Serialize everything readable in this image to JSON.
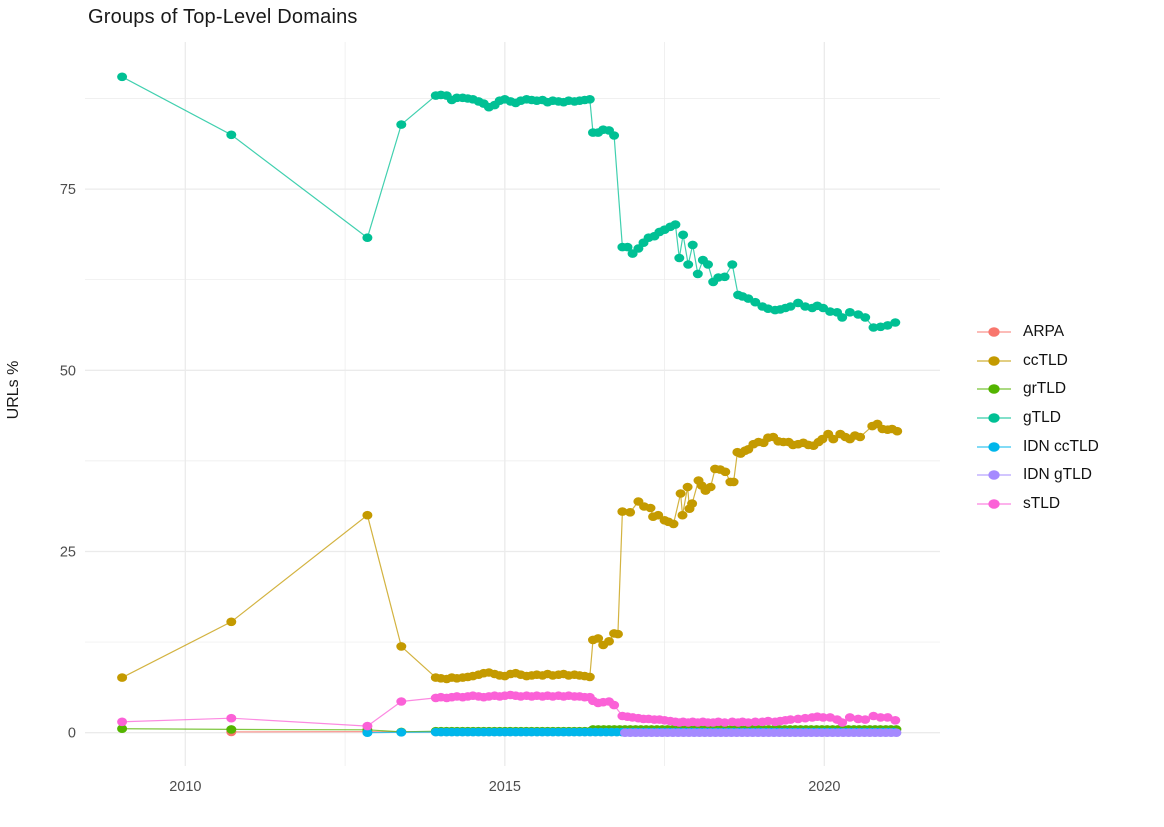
{
  "chart_data": {
    "type": "line",
    "title": "Groups of Top-Level Domains",
    "xlabel": "",
    "ylabel": "URLs %",
    "x_ticks": [
      2010,
      2015,
      2020
    ],
    "x_minor_ticks": [
      2012.5,
      2017.5
    ],
    "y_ticks": [
      0,
      25,
      50,
      75
    ],
    "y_minor_ticks": [
      12.5,
      37.5,
      62.5,
      87.5
    ],
    "xlim": [
      2008.43,
      2021.81
    ],
    "ylim": [
      -4.6,
      95.3
    ],
    "grid": true,
    "legend_position": "right",
    "grid_color": "#ebebeb",
    "tick_label_color": "#4d4d4d",
    "series": [
      {
        "name": "ARPA",
        "color": "#F8766D",
        "points": [
          [
            2010.72,
            0.1
          ],
          [
            2012.85,
            0.15
          ]
        ],
        "flats": [
          {
            "from": 2013.92,
            "to": 2021.14,
            "step": 0.0833,
            "value": 0.1
          }
        ]
      },
      {
        "name": "ccTLD",
        "color": "#C49A00",
        "points": [
          [
            2009.01,
            7.6
          ],
          [
            2010.72,
            15.3
          ],
          [
            2012.85,
            30.0
          ],
          [
            2013.38,
            11.9
          ],
          [
            2013.92,
            7.6
          ],
          [
            2014.0,
            7.5
          ],
          [
            2014.09,
            7.4
          ],
          [
            2014.17,
            7.6
          ],
          [
            2014.25,
            7.5
          ],
          [
            2014.34,
            7.6
          ],
          [
            2014.42,
            7.7
          ],
          [
            2014.5,
            7.8
          ],
          [
            2014.59,
            8.0
          ],
          [
            2014.67,
            8.2
          ],
          [
            2014.75,
            8.3
          ],
          [
            2014.84,
            8.1
          ],
          [
            2014.92,
            7.9
          ],
          [
            2015.0,
            7.8
          ],
          [
            2015.09,
            8.1
          ],
          [
            2015.17,
            8.2
          ],
          [
            2015.25,
            8.0
          ],
          [
            2015.34,
            7.8
          ],
          [
            2015.42,
            7.9
          ],
          [
            2015.5,
            8.0
          ],
          [
            2015.59,
            7.9
          ],
          [
            2015.67,
            8.1
          ],
          [
            2015.75,
            7.9
          ],
          [
            2015.84,
            8.0
          ],
          [
            2015.92,
            8.1
          ],
          [
            2016.0,
            7.9
          ],
          [
            2016.09,
            8.0
          ],
          [
            2016.17,
            7.9
          ],
          [
            2016.25,
            7.8
          ],
          [
            2016.33,
            7.7
          ],
          [
            2016.38,
            12.8
          ],
          [
            2016.46,
            13.0
          ],
          [
            2016.54,
            12.1
          ],
          [
            2016.63,
            12.6
          ],
          [
            2016.71,
            13.7
          ],
          [
            2016.77,
            13.6
          ],
          [
            2016.84,
            30.5
          ],
          [
            2016.96,
            30.4
          ],
          [
            2017.09,
            31.9
          ],
          [
            2017.18,
            31.2
          ],
          [
            2017.28,
            31.0
          ],
          [
            2017.32,
            29.8
          ],
          [
            2017.4,
            30.0
          ],
          [
            2017.5,
            29.3
          ],
          [
            2017.56,
            29.1
          ],
          [
            2017.64,
            28.8
          ],
          [
            2017.75,
            33.0
          ],
          [
            2017.78,
            30.0
          ],
          [
            2017.86,
            33.9
          ],
          [
            2017.89,
            30.9
          ],
          [
            2017.93,
            31.6
          ],
          [
            2018.03,
            34.8
          ],
          [
            2018.08,
            34.1
          ],
          [
            2018.14,
            33.4
          ],
          [
            2018.22,
            33.9
          ],
          [
            2018.29,
            36.4
          ],
          [
            2018.37,
            36.3
          ],
          [
            2018.45,
            36.0
          ],
          [
            2018.53,
            34.6
          ],
          [
            2018.58,
            34.6
          ],
          [
            2018.64,
            38.7
          ],
          [
            2018.69,
            38.5
          ],
          [
            2018.76,
            38.9
          ],
          [
            2018.81,
            39.1
          ],
          [
            2018.89,
            39.8
          ],
          [
            2018.97,
            40.1
          ],
          [
            2019.05,
            40.0
          ],
          [
            2019.12,
            40.7
          ],
          [
            2019.2,
            40.8
          ],
          [
            2019.28,
            40.2
          ],
          [
            2019.36,
            40.1
          ],
          [
            2019.44,
            40.1
          ],
          [
            2019.51,
            39.7
          ],
          [
            2019.59,
            39.8
          ],
          [
            2019.67,
            40.0
          ],
          [
            2019.75,
            39.7
          ],
          [
            2019.83,
            39.6
          ],
          [
            2019.91,
            40.1
          ],
          [
            2019.97,
            40.5
          ],
          [
            2020.06,
            41.2
          ],
          [
            2020.14,
            40.5
          ],
          [
            2020.25,
            41.2
          ],
          [
            2020.33,
            40.8
          ],
          [
            2020.4,
            40.5
          ],
          [
            2020.48,
            41.0
          ],
          [
            2020.56,
            40.8
          ],
          [
            2020.75,
            42.3
          ],
          [
            2020.83,
            42.6
          ],
          [
            2020.91,
            41.9
          ],
          [
            2020.99,
            41.8
          ],
          [
            2021.06,
            41.9
          ],
          [
            2021.14,
            41.6
          ]
        ]
      },
      {
        "name": "grTLD",
        "color": "#53B400",
        "points": [
          [
            2009.01,
            0.55
          ],
          [
            2010.72,
            0.45
          ],
          [
            2012.85,
            0.4
          ],
          [
            2013.38,
            0.1
          ]
        ],
        "flats": [
          {
            "from": 2013.92,
            "to": 2016.35,
            "step": 0.0833,
            "value": 0.2
          },
          {
            "from": 2016.38,
            "to": 2021.14,
            "step": 0.0833,
            "value": 0.45
          }
        ]
      },
      {
        "name": "gTLD",
        "color": "#00C094",
        "points": [
          [
            2009.01,
            90.5
          ],
          [
            2010.72,
            82.5
          ],
          [
            2012.85,
            68.3
          ],
          [
            2013.38,
            83.9
          ],
          [
            2013.92,
            87.9
          ],
          [
            2014.0,
            88.0
          ],
          [
            2014.09,
            87.9
          ],
          [
            2014.17,
            87.3
          ],
          [
            2014.25,
            87.6
          ],
          [
            2014.34,
            87.6
          ],
          [
            2014.42,
            87.5
          ],
          [
            2014.5,
            87.4
          ],
          [
            2014.59,
            87.1
          ],
          [
            2014.67,
            86.8
          ],
          [
            2014.75,
            86.3
          ],
          [
            2014.84,
            86.6
          ],
          [
            2014.92,
            87.2
          ],
          [
            2015.0,
            87.4
          ],
          [
            2015.09,
            87.1
          ],
          [
            2015.17,
            86.9
          ],
          [
            2015.25,
            87.2
          ],
          [
            2015.34,
            87.4
          ],
          [
            2015.42,
            87.3
          ],
          [
            2015.5,
            87.2
          ],
          [
            2015.59,
            87.3
          ],
          [
            2015.67,
            87.0
          ],
          [
            2015.75,
            87.2
          ],
          [
            2015.84,
            87.1
          ],
          [
            2015.92,
            87.0
          ],
          [
            2016.0,
            87.2
          ],
          [
            2016.09,
            87.1
          ],
          [
            2016.17,
            87.2
          ],
          [
            2016.25,
            87.3
          ],
          [
            2016.33,
            87.4
          ],
          [
            2016.38,
            82.8
          ],
          [
            2016.46,
            82.8
          ],
          [
            2016.54,
            83.2
          ],
          [
            2016.63,
            83.1
          ],
          [
            2016.71,
            82.4
          ],
          [
            2016.84,
            67.0
          ],
          [
            2016.92,
            67.0
          ],
          [
            2017.0,
            66.1
          ],
          [
            2017.09,
            66.8
          ],
          [
            2017.17,
            67.6
          ],
          [
            2017.25,
            68.3
          ],
          [
            2017.34,
            68.5
          ],
          [
            2017.42,
            69.1
          ],
          [
            2017.5,
            69.4
          ],
          [
            2017.59,
            69.8
          ],
          [
            2017.67,
            70.1
          ],
          [
            2017.73,
            65.5
          ],
          [
            2017.79,
            68.7
          ],
          [
            2017.87,
            64.6
          ],
          [
            2017.94,
            67.3
          ],
          [
            2018.02,
            63.3
          ],
          [
            2018.1,
            65.2
          ],
          [
            2018.18,
            64.6
          ],
          [
            2018.26,
            62.2
          ],
          [
            2018.34,
            62.8
          ],
          [
            2018.44,
            62.9
          ],
          [
            2018.56,
            64.6
          ],
          [
            2018.65,
            60.4
          ],
          [
            2018.72,
            60.2
          ],
          [
            2018.81,
            59.9
          ],
          [
            2018.92,
            59.4
          ],
          [
            2019.03,
            58.8
          ],
          [
            2019.12,
            58.5
          ],
          [
            2019.23,
            58.3
          ],
          [
            2019.31,
            58.4
          ],
          [
            2019.39,
            58.6
          ],
          [
            2019.47,
            58.8
          ],
          [
            2019.59,
            59.3
          ],
          [
            2019.7,
            58.8
          ],
          [
            2019.81,
            58.6
          ],
          [
            2019.89,
            58.9
          ],
          [
            2019.98,
            58.6
          ],
          [
            2020.09,
            58.1
          ],
          [
            2020.2,
            58.0
          ],
          [
            2020.28,
            57.3
          ],
          [
            2020.4,
            58.0
          ],
          [
            2020.53,
            57.7
          ],
          [
            2020.64,
            57.3
          ],
          [
            2020.77,
            55.9
          ],
          [
            2020.88,
            56.0
          ],
          [
            2020.99,
            56.2
          ],
          [
            2021.11,
            56.6
          ]
        ]
      },
      {
        "name": "IDN ccTLD",
        "color": "#00B6EB",
        "points": [
          [
            2012.85,
            0.0
          ],
          [
            2013.38,
            0.05
          ]
        ],
        "flats": [
          {
            "from": 2013.92,
            "to": 2021.14,
            "step": 0.0833,
            "value": 0.08
          }
        ]
      },
      {
        "name": "IDN gTLD",
        "color": "#A58AFF",
        "points": [],
        "flats": [
          {
            "from": 2016.88,
            "to": 2021.14,
            "step": 0.0833,
            "value": 0.0
          }
        ]
      },
      {
        "name": "sTLD",
        "color": "#FB61D7",
        "points": [
          [
            2009.01,
            1.5
          ],
          [
            2010.72,
            2.0
          ],
          [
            2012.85,
            0.9
          ],
          [
            2013.38,
            4.3
          ],
          [
            2013.92,
            4.8
          ],
          [
            2014.0,
            4.9
          ],
          [
            2014.09,
            4.8
          ],
          [
            2014.17,
            4.9
          ],
          [
            2014.25,
            5.0
          ],
          [
            2014.34,
            4.9
          ],
          [
            2014.42,
            5.0
          ],
          [
            2014.5,
            5.1
          ],
          [
            2014.59,
            5.0
          ],
          [
            2014.67,
            4.9
          ],
          [
            2014.75,
            5.0
          ],
          [
            2014.84,
            5.1
          ],
          [
            2014.92,
            5.0
          ],
          [
            2015.0,
            5.1
          ],
          [
            2015.09,
            5.2
          ],
          [
            2015.17,
            5.1
          ],
          [
            2015.25,
            5.0
          ],
          [
            2015.34,
            5.1
          ],
          [
            2015.42,
            5.0
          ],
          [
            2015.5,
            5.1
          ],
          [
            2015.59,
            5.0
          ],
          [
            2015.67,
            5.1
          ],
          [
            2015.75,
            5.0
          ],
          [
            2015.84,
            5.1
          ],
          [
            2015.92,
            5.0
          ],
          [
            2016.0,
            5.1
          ],
          [
            2016.09,
            5.0
          ],
          [
            2016.17,
            5.0
          ],
          [
            2016.25,
            4.9
          ],
          [
            2016.33,
            4.9
          ],
          [
            2016.38,
            4.4
          ],
          [
            2016.46,
            4.1
          ],
          [
            2016.54,
            4.2
          ],
          [
            2016.63,
            4.3
          ],
          [
            2016.71,
            3.8
          ],
          [
            2016.84,
            2.3
          ],
          [
            2016.92,
            2.2
          ],
          [
            2017.0,
            2.1
          ],
          [
            2017.09,
            2.0
          ],
          [
            2017.17,
            1.9
          ],
          [
            2017.25,
            1.9
          ],
          [
            2017.34,
            1.8
          ],
          [
            2017.42,
            1.8
          ],
          [
            2017.5,
            1.7
          ],
          [
            2017.59,
            1.6
          ],
          [
            2017.67,
            1.5
          ],
          [
            2017.73,
            1.4
          ],
          [
            2017.79,
            1.5
          ],
          [
            2017.87,
            1.4
          ],
          [
            2017.94,
            1.5
          ],
          [
            2018.02,
            1.4
          ],
          [
            2018.1,
            1.5
          ],
          [
            2018.18,
            1.4
          ],
          [
            2018.26,
            1.4
          ],
          [
            2018.34,
            1.5
          ],
          [
            2018.44,
            1.4
          ],
          [
            2018.56,
            1.5
          ],
          [
            2018.65,
            1.4
          ],
          [
            2018.72,
            1.5
          ],
          [
            2018.81,
            1.4
          ],
          [
            2018.92,
            1.5
          ],
          [
            2019.03,
            1.5
          ],
          [
            2019.12,
            1.6
          ],
          [
            2019.23,
            1.5
          ],
          [
            2019.31,
            1.6
          ],
          [
            2019.39,
            1.7
          ],
          [
            2019.47,
            1.8
          ],
          [
            2019.59,
            1.9
          ],
          [
            2019.7,
            2.0
          ],
          [
            2019.81,
            2.1
          ],
          [
            2019.89,
            2.2
          ],
          [
            2019.98,
            2.1
          ],
          [
            2020.09,
            2.1
          ],
          [
            2020.2,
            1.8
          ],
          [
            2020.28,
            1.4
          ],
          [
            2020.4,
            2.1
          ],
          [
            2020.53,
            1.9
          ],
          [
            2020.64,
            1.8
          ],
          [
            2020.77,
            2.3
          ],
          [
            2020.88,
            2.1
          ],
          [
            2020.99,
            2.1
          ],
          [
            2021.11,
            1.7
          ]
        ]
      }
    ]
  }
}
